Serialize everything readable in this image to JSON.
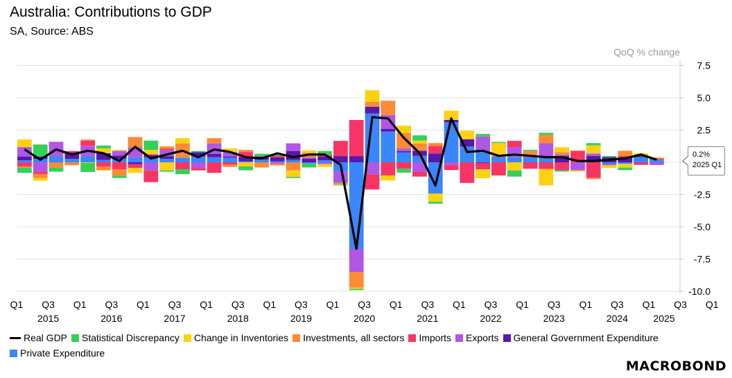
{
  "title": "Australia: Contributions to GDP",
  "subtitle": "SA, Source: ABS",
  "logo": "MACROBOND",
  "callout": {
    "value": "0.2%",
    "period": "2025 Q1"
  },
  "chart_data": {
    "type": "bar",
    "subtype": "stacked-bar-with-line",
    "ylabel": "QoQ % change",
    "ylim": [
      -10,
      7.5
    ],
    "yticks": [
      7.5,
      5.0,
      2.5,
      0.0,
      -2.5,
      -5.0,
      -7.5,
      -10.0
    ],
    "ytick_labels": [
      "7.5",
      "5.0",
      "2.5",
      "",
      "-2.5",
      "-5.0",
      "-7.5",
      "-10.0"
    ],
    "grid": true,
    "legend_position": "bottom",
    "x_tick_labels": [
      "Q1",
      "Q3",
      "Q1",
      "Q3",
      "Q1",
      "Q3",
      "Q1",
      "Q3",
      "Q1",
      "Q3",
      "Q1",
      "Q3",
      "Q1",
      "Q3",
      "Q1",
      "Q3",
      "Q1",
      "Q3",
      "Q1",
      "Q3",
      "Q1",
      "Q3",
      "Q1"
    ],
    "year_labels": [
      "2015",
      "2016",
      "2017",
      "2018",
      "2019",
      "2020",
      "2021",
      "2022",
      "2023",
      "2024",
      "2025"
    ],
    "categories": [
      "2015Q1",
      "2015Q2",
      "2015Q3",
      "2015Q4",
      "2016Q1",
      "2016Q2",
      "2016Q3",
      "2016Q4",
      "2017Q1",
      "2017Q2",
      "2017Q3",
      "2017Q4",
      "2018Q1",
      "2018Q2",
      "2018Q3",
      "2018Q4",
      "2019Q1",
      "2019Q2",
      "2019Q3",
      "2019Q4",
      "2020Q1",
      "2020Q2",
      "2020Q3",
      "2020Q4",
      "2021Q1",
      "2021Q2",
      "2021Q3",
      "2021Q4",
      "2022Q1",
      "2022Q2",
      "2022Q3",
      "2022Q4",
      "2023Q1",
      "2023Q2",
      "2023Q3",
      "2023Q4",
      "2024Q1",
      "2024Q2",
      "2024Q3",
      "2024Q4",
      "2025Q1"
    ],
    "line": {
      "name": "Real GDP",
      "color": "#000000",
      "values": [
        1.0,
        0.2,
        1.0,
        0.6,
        0.9,
        0.7,
        0.1,
        1.2,
        0.3,
        0.6,
        0.9,
        0.4,
        1.0,
        0.8,
        0.4,
        0.3,
        0.7,
        0.4,
        0.6,
        0.6,
        -0.2,
        -6.7,
        3.5,
        3.4,
        1.9,
        0.7,
        -1.8,
        3.4,
        0.8,
        0.9,
        0.5,
        0.6,
        0.5,
        0.4,
        0.4,
        0.1,
        0.1,
        0.2,
        0.3,
        0.6,
        0.2
      ]
    },
    "series": [
      {
        "name": "Private Expenditure",
        "color": "#3a86fb",
        "values": [
          0.16,
          0.27,
          0.48,
          0.27,
          0.48,
          0.18,
          0.27,
          0.36,
          0.39,
          0.27,
          0.36,
          0.45,
          0.39,
          0.36,
          0.07,
          0.2,
          0.07,
          0.18,
          -0.1,
          0.16,
          -0.72,
          -6.72,
          3.78,
          2.38,
          0.77,
          0.5,
          -2.42,
          3.1,
          1.22,
          0.8,
          0.41,
          0.41,
          0.38,
          0.41,
          0,
          0,
          0,
          -0.18,
          -0.12,
          0.41,
          0.2
        ]
      },
      {
        "name": "General Government Expenditure",
        "color": "#5718ad",
        "values": [
          0.29,
          0.18,
          0,
          0.48,
          0,
          0.52,
          0.25,
          -0.14,
          0.18,
          0.2,
          0,
          0.34,
          0.27,
          0.09,
          0.32,
          0.23,
          0.32,
          0.7,
          0.27,
          0.29,
          0.48,
          0.48,
          0.52,
          0.2,
          0.1,
          0.39,
          0.68,
          0.18,
          0.57,
          -0.05,
          0,
          0,
          0,
          0,
          0.5,
          0,
          0.5,
          0.4,
          0.41,
          0.09,
          0
        ]
      },
      {
        "name": "Exports",
        "color": "#b057e6",
        "values": [
          0.73,
          -0.73,
          1.11,
          0,
          0.8,
          0,
          0.36,
          0.8,
          -0.63,
          0.48,
          0,
          -0.45,
          0.8,
          0.34,
          0,
          0.05,
          -0.1,
          0.59,
          0.12,
          -0.14,
          -0.88,
          -1.79,
          -0.93,
          1.09,
          0.2,
          -0.72,
          0,
          -0.2,
          0,
          1.2,
          0.09,
          0.77,
          0.2,
          1.07,
          0.09,
          -0.63,
          0.18,
          0,
          0,
          0,
          -0.21
        ]
      },
      {
        "name": "Imports",
        "color": "#f73564",
        "values": [
          -0.32,
          -0.18,
          0,
          0.12,
          0.39,
          -0.32,
          -0.54,
          -0.3,
          -0.91,
          0.1,
          -0.54,
          -0.18,
          -0.82,
          -0.18,
          0.39,
          0,
          0.12,
          0,
          0,
          0.12,
          1.18,
          2.8,
          -1.18,
          -1.02,
          -0.5,
          -0.39,
          0.59,
          -0.4,
          -1.6,
          -0.5,
          -1.02,
          0.48,
          -0.5,
          -0.52,
          -0.63,
          0.86,
          -1.2,
          -0.05,
          0.09,
          -0.2,
          0.09
        ]
      },
      {
        "name": "Investments, all sectors",
        "color": "#fd8a35",
        "values": [
          -0.09,
          -0.3,
          -0.41,
          -0.23,
          0.09,
          -0.3,
          -0.5,
          0.8,
          0.09,
          0.18,
          1.1,
          0,
          0.41,
          -0.18,
          0.18,
          -0.4,
          -0.14,
          -0.63,
          0.35,
          0,
          -0.1,
          -1.2,
          0.38,
          1.1,
          1.2,
          0.56,
          0.22,
          0,
          0,
          0,
          0,
          0,
          0.3,
          0.63,
          0.2,
          0.05,
          -0.1,
          0,
          0.39,
          0,
          0.05
        ]
      },
      {
        "name": "Change in Inventories",
        "color": "#ffd110",
        "values": [
          0.59,
          -0.22,
          0,
          0,
          -0.05,
          0.38,
          0.09,
          -0.38,
          0.3,
          -0.63,
          0.41,
          0,
          0,
          0.29,
          -0.32,
          0,
          0,
          -0.5,
          0.18,
          -0.22,
          -0.05,
          -0.1,
          0.9,
          -0.39,
          0.57,
          0.23,
          -0.63,
          0.72,
          0.66,
          -0.68,
          0.99,
          -0.63,
          0,
          -1.27,
          0.38,
          -0.09,
          0.63,
          -0.2,
          -0.29,
          0.2,
          0.05
        ]
      },
      {
        "name": "Statistical Discrepancy",
        "color": "#35d058",
        "values": [
          -0.41,
          0.93,
          -0.32,
          0,
          -0.7,
          0.22,
          -0.18,
          0,
          0.72,
          -0.1,
          -0.38,
          0.09,
          0,
          0,
          -0.3,
          0.18,
          0.14,
          -0.09,
          -0.3,
          0.3,
          -0.05,
          -0.1,
          0,
          0,
          -0.3,
          0.41,
          -0.16,
          0,
          0,
          0.2,
          0.09,
          -0.48,
          0.09,
          0.18,
          -0.09,
          0,
          0.18,
          0.09,
          -0.2,
          0,
          0
        ]
      }
    ],
    "legend": [
      "Real GDP",
      "Statistical Discrepancy",
      "Change in Inventories",
      "Investments, all sectors",
      "Imports",
      "Exports",
      "General Government Expenditure",
      "Private Expenditure"
    ]
  }
}
